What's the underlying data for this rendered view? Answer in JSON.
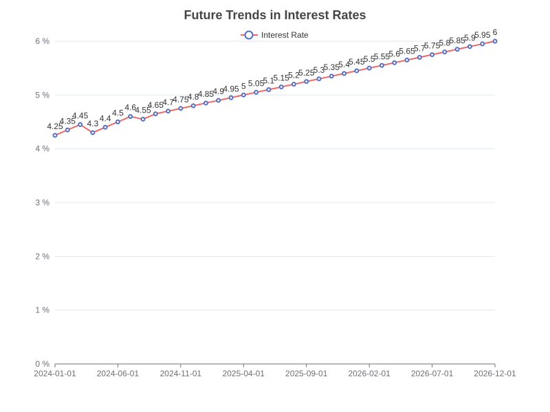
{
  "chart_data": {
    "type": "line",
    "title": "Future Trends in Interest Rates",
    "xlabel": "",
    "ylabel": "",
    "ylim": [
      0,
      6
    ],
    "y_ticks": [
      "0 %",
      "1 %",
      "2 %",
      "3 %",
      "4 %",
      "5 %",
      "6 %"
    ],
    "x_tick_labels": [
      "2024-01-01",
      "2024-06-01",
      "2024-11-01",
      "2025-04-01",
      "2025-09-01",
      "2026-02-01",
      "2026-07-01",
      "2026-12-01"
    ],
    "grid": "horizontal",
    "legend_position": "top-center",
    "x": [
      "2024-01-01",
      "2024-02-01",
      "2024-03-01",
      "2024-04-01",
      "2024-05-01",
      "2024-06-01",
      "2024-07-01",
      "2024-08-01",
      "2024-09-01",
      "2024-10-01",
      "2024-11-01",
      "2024-12-01",
      "2025-01-01",
      "2025-02-01",
      "2025-03-01",
      "2025-04-01",
      "2025-05-01",
      "2025-06-01",
      "2025-07-01",
      "2025-08-01",
      "2025-09-01",
      "2025-10-01",
      "2025-11-01",
      "2025-12-01",
      "2026-01-01",
      "2026-02-01",
      "2026-03-01",
      "2026-04-01",
      "2026-05-01",
      "2026-06-01",
      "2026-07-01",
      "2026-08-01",
      "2026-09-01",
      "2026-10-01",
      "2026-11-01",
      "2026-12-01"
    ],
    "series": [
      {
        "name": "Interest Rate",
        "color": "#ee6666",
        "marker_color": "#5470c6",
        "values": [
          4.25,
          4.35,
          4.45,
          4.3,
          4.4,
          4.5,
          4.6,
          4.55,
          4.65,
          4.7,
          4.75,
          4.8,
          4.85,
          4.9,
          4.95,
          5,
          5.05,
          5.1,
          5.15,
          5.2,
          5.25,
          5.3,
          5.35,
          5.4,
          5.45,
          5.5,
          5.55,
          5.6,
          5.65,
          5.7,
          5.75,
          5.8,
          5.85,
          5.9,
          5.95,
          6
        ]
      }
    ]
  }
}
